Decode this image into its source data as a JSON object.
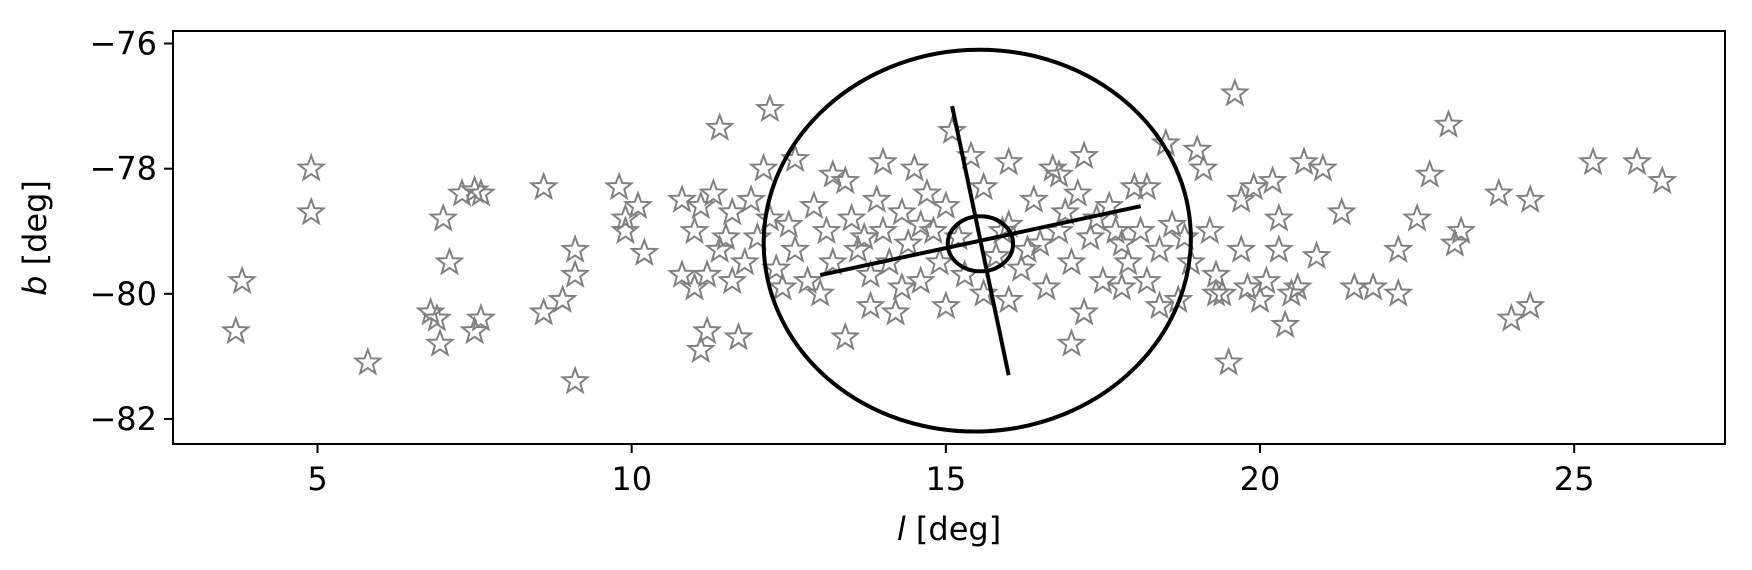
{
  "chart_data": {
    "type": "scatter",
    "xlabel_var": "l",
    "xlabel_unit": " [deg]",
    "ylabel_var": "b",
    "ylabel_unit": " [deg]",
    "xlim": [
      2.7,
      27.4
    ],
    "ylim": [
      -82.4,
      -75.8
    ],
    "x_ticks": [
      5,
      10,
      15,
      20,
      25
    ],
    "x_tick_labels": [
      "5",
      "10",
      "15",
      "20",
      "25"
    ],
    "y_ticks": [
      -76,
      -78,
      -80,
      -82
    ],
    "y_tick_labels": [
      "−76",
      "−78",
      "−80",
      "−82"
    ],
    "grid": false,
    "marker": "open-star",
    "marker_color": "#808080",
    "overlay_color": "#000000",
    "points": [
      [
        3.7,
        -80.6
      ],
      [
        3.8,
        -79.8
      ],
      [
        4.9,
        -78.0
      ],
      [
        4.9,
        -78.7
      ],
      [
        5.8,
        -81.1
      ],
      [
        6.8,
        -80.3
      ],
      [
        6.9,
        -80.4
      ],
      [
        6.95,
        -80.8
      ],
      [
        7.0,
        -78.8
      ],
      [
        7.1,
        -79.5
      ],
      [
        7.3,
        -78.4
      ],
      [
        7.5,
        -78.35
      ],
      [
        7.6,
        -78.4
      ],
      [
        7.5,
        -80.6
      ],
      [
        7.6,
        -80.4
      ],
      [
        8.6,
        -78.3
      ],
      [
        8.6,
        -80.3
      ],
      [
        8.9,
        -80.1
      ],
      [
        9.1,
        -79.7
      ],
      [
        9.1,
        -79.3
      ],
      [
        9.1,
        -81.4
      ],
      [
        9.8,
        -78.3
      ],
      [
        9.9,
        -78.8
      ],
      [
        9.9,
        -79.0
      ],
      [
        10.1,
        -78.6
      ],
      [
        10.2,
        -79.35
      ],
      [
        10.8,
        -78.5
      ],
      [
        10.8,
        -79.7
      ],
      [
        11.0,
        -79.9
      ],
      [
        11.1,
        -80.9
      ],
      [
        11.2,
        -80.6
      ],
      [
        11.4,
        -77.35
      ],
      [
        11.7,
        -80.7
      ],
      [
        12.2,
        -77.05
      ],
      [
        12.6,
        -77.85
      ],
      [
        11.1,
        -78.6
      ],
      [
        11.3,
        -78.4
      ],
      [
        11.6,
        -78.7
      ],
      [
        11.9,
        -78.5
      ],
      [
        12.1,
        -78.0
      ],
      [
        11.0,
        -79.0
      ],
      [
        11.4,
        -79.3
      ],
      [
        11.8,
        -79.5
      ],
      [
        11.2,
        -79.7
      ],
      [
        11.6,
        -79.8
      ],
      [
        12.0,
        -79.1
      ],
      [
        12.3,
        -79.6
      ],
      [
        12.5,
        -78.9
      ],
      [
        12.6,
        -79.3
      ],
      [
        12.8,
        -79.8
      ],
      [
        12.9,
        -78.6
      ],
      [
        13.1,
        -79.0
      ],
      [
        13.2,
        -79.5
      ],
      [
        13.4,
        -78.2
      ],
      [
        13.5,
        -78.8
      ],
      [
        13.6,
        -79.3
      ],
      [
        13.8,
        -79.7
      ],
      [
        13.9,
        -78.5
      ],
      [
        14.0,
        -79.0
      ],
      [
        14.1,
        -79.5
      ],
      [
        14.3,
        -78.7
      ],
      [
        14.4,
        -79.2
      ],
      [
        14.5,
        -78.0
      ],
      [
        14.6,
        -79.8
      ],
      [
        14.7,
        -78.4
      ],
      [
        14.8,
        -79.0
      ],
      [
        14.9,
        -79.5
      ],
      [
        15.0,
        -78.6
      ],
      [
        15.2,
        -79.1
      ],
      [
        15.1,
        -77.4
      ],
      [
        15.4,
        -77.8
      ],
      [
        15.6,
        -78.3
      ],
      [
        15.8,
        -79.4
      ],
      [
        16.0,
        -78.9
      ],
      [
        16.2,
        -79.6
      ],
      [
        16.4,
        -78.5
      ],
      [
        16.5,
        -79.2
      ],
      [
        16.7,
        -78.0
      ],
      [
        16.8,
        -79.0
      ],
      [
        17.0,
        -79.5
      ],
      [
        17.1,
        -78.4
      ],
      [
        17.3,
        -79.1
      ],
      [
        17.4,
        -78.8
      ],
      [
        17.5,
        -79.8
      ],
      [
        17.6,
        -78.6
      ],
      [
        17.8,
        -79.2
      ],
      [
        17.9,
        -79.5
      ],
      [
        18.0,
        -78.3
      ],
      [
        18.1,
        -79.0
      ],
      [
        18.2,
        -79.8
      ],
      [
        18.4,
        -79.3
      ],
      [
        18.5,
        -77.6
      ],
      [
        18.6,
        -78.9
      ],
      [
        18.7,
        -80.1
      ],
      [
        18.9,
        -79.5
      ],
      [
        19.0,
        -77.7
      ],
      [
        19.1,
        -78.0
      ],
      [
        19.2,
        -79.0
      ],
      [
        19.3,
        -79.7
      ],
      [
        19.4,
        -80.0
      ],
      [
        19.5,
        -81.1
      ],
      [
        19.6,
        -76.8
      ],
      [
        19.7,
        -78.5
      ],
      [
        19.8,
        -79.9
      ],
      [
        19.9,
        -78.3
      ],
      [
        20.0,
        -80.1
      ],
      [
        20.1,
        -79.8
      ],
      [
        20.2,
        -78.2
      ],
      [
        20.3,
        -78.8
      ],
      [
        20.3,
        -79.3
      ],
      [
        20.4,
        -80.5
      ],
      [
        20.5,
        -80.0
      ],
      [
        20.6,
        -79.9
      ],
      [
        20.7,
        -77.9
      ],
      [
        20.9,
        -79.4
      ],
      [
        21.0,
        -78.0
      ],
      [
        21.3,
        -78.7
      ],
      [
        21.5,
        -79.9
      ],
      [
        21.8,
        -79.9
      ],
      [
        22.2,
        -80.0
      ],
      [
        22.2,
        -79.3
      ],
      [
        22.5,
        -78.8
      ],
      [
        22.7,
        -78.1
      ],
      [
        23.0,
        -77.3
      ],
      [
        23.1,
        -79.2
      ],
      [
        23.2,
        -79.0
      ],
      [
        23.8,
        -78.4
      ],
      [
        24.0,
        -80.4
      ],
      [
        24.3,
        -78.5
      ],
      [
        24.3,
        -80.2
      ],
      [
        25.3,
        -77.9
      ],
      [
        26.0,
        -77.9
      ],
      [
        26.4,
        -78.2
      ],
      [
        13.0,
        -80.0
      ],
      [
        13.4,
        -80.7
      ],
      [
        13.8,
        -80.2
      ],
      [
        14.2,
        -80.3
      ],
      [
        15.0,
        -80.2
      ],
      [
        15.6,
        -80.0
      ],
      [
        16.0,
        -80.1
      ],
      [
        16.6,
        -79.9
      ],
      [
        17.0,
        -80.8
      ],
      [
        17.2,
        -80.3
      ],
      [
        17.8,
        -79.9
      ],
      [
        12.4,
        -79.9
      ],
      [
        13.2,
        -78.1
      ],
      [
        14.0,
        -77.9
      ],
      [
        16.0,
        -77.9
      ],
      [
        16.8,
        -78.1
      ],
      [
        17.2,
        -77.8
      ],
      [
        18.2,
        -78.3
      ],
      [
        19.3,
        -80.0
      ],
      [
        19.7,
        -79.3
      ],
      [
        18.4,
        -80.2
      ],
      [
        15.3,
        -79.7
      ],
      [
        14.6,
        -78.9
      ],
      [
        13.7,
        -79.1
      ],
      [
        16.3,
        -79.3
      ],
      [
        17.7,
        -79.0
      ],
      [
        12.2,
        -78.8
      ],
      [
        11.5,
        -79.1
      ],
      [
        18.8,
        -79.1
      ],
      [
        15.9,
        -79.0
      ],
      [
        14.3,
        -79.9
      ],
      [
        16.9,
        -78.7
      ]
    ],
    "overlay": {
      "ellipse_large": {
        "cx": 15.5,
        "cy": -79.15,
        "rx": 3.4,
        "ry": 3.05,
        "angle_deg": -3
      },
      "ellipse_small": {
        "cx": 15.55,
        "cy": -79.2,
        "rx": 0.52,
        "ry": 0.44
      },
      "major_axis": [
        [
          13.0,
          -79.7
        ],
        [
          18.1,
          -78.6
        ]
      ],
      "minor_axis": [
        [
          15.1,
          -77.0
        ],
        [
          16.0,
          -81.3
        ]
      ]
    }
  }
}
